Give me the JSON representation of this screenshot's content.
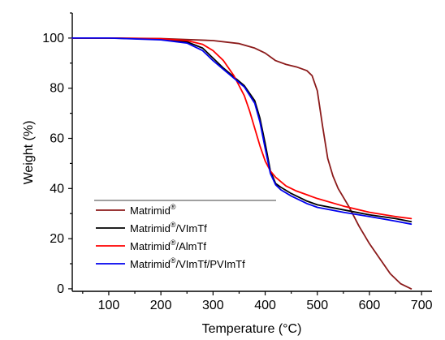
{
  "chart_data": {
    "type": "line",
    "xlabel": "Temperature (°C)",
    "ylabel": "Weight (%)",
    "xlim": [
      30,
      720
    ],
    "ylim": [
      -1,
      110
    ],
    "xticks": [
      100,
      200,
      300,
      400,
      500,
      600,
      700
    ],
    "xtick_labels": [
      "100",
      "200",
      "300",
      "400",
      "500",
      "600",
      "700"
    ],
    "yticks": [
      0,
      20,
      40,
      60,
      80,
      100
    ],
    "ytick_labels": [
      "0",
      "20",
      "40",
      "60",
      "80",
      "100"
    ],
    "grid": false,
    "legend_position": "bottom-left",
    "series": [
      {
        "name": "Matrimid®",
        "label_base": "Matrimid",
        "label_sup": "®",
        "label_rest": "",
        "color": "#8b1a1a",
        "x": [
          30,
          100,
          200,
          300,
          350,
          380,
          400,
          420,
          440,
          460,
          480,
          490,
          500,
          510,
          520,
          530,
          540,
          560,
          580,
          600,
          620,
          640,
          660,
          680
        ],
        "y": [
          100,
          100,
          99.8,
          99.0,
          97.8,
          96.0,
          94.0,
          91.0,
          89.5,
          88.5,
          87.0,
          85.0,
          79.0,
          65.0,
          52.0,
          45.0,
          40.0,
          33.0,
          25.0,
          18.0,
          12.0,
          6.0,
          2.0,
          0.0
        ]
      },
      {
        "name": "Matrimid®/VImTf",
        "label_base": "Matrimid",
        "label_sup": "®",
        "label_rest": "/VImTf",
        "color": "#000000",
        "x": [
          30,
          100,
          200,
          250,
          280,
          300,
          320,
          340,
          360,
          380,
          390,
          400,
          410,
          420,
          430,
          450,
          480,
          500,
          550,
          600,
          650,
          680
        ],
        "y": [
          100,
          100,
          99.5,
          98.5,
          96.0,
          92.0,
          88.0,
          84.5,
          81.0,
          75.0,
          68.0,
          58.0,
          47.0,
          42.0,
          40.5,
          38.0,
          35.0,
          33.5,
          31.5,
          29.5,
          28.0,
          26.8
        ]
      },
      {
        "name": "Matrimid®/AlmTf",
        "label_base": "Matrimid",
        "label_sup": "®",
        "label_rest": "/AlmTf",
        "color": "#ff0000",
        "x": [
          30,
          100,
          200,
          250,
          280,
          300,
          320,
          340,
          360,
          370,
          380,
          390,
          400,
          410,
          420,
          440,
          460,
          480,
          500,
          550,
          600,
          650,
          680
        ],
        "y": [
          100,
          100,
          99.7,
          99.0,
          97.5,
          95.0,
          91.0,
          85.0,
          77.0,
          71.0,
          64.0,
          57.0,
          51.0,
          47.0,
          44.5,
          41.0,
          39.0,
          37.5,
          36.0,
          33.0,
          30.5,
          28.8,
          28.0
        ]
      },
      {
        "name": "Matrimid®/VImTf/PVImTf",
        "label_base": "Matrimid",
        "label_sup": "®",
        "label_rest": "/VImTf/PVImTf",
        "color": "#0000ee",
        "x": [
          30,
          100,
          200,
          250,
          280,
          300,
          320,
          340,
          360,
          380,
          390,
          400,
          410,
          420,
          430,
          450,
          480,
          500,
          550,
          600,
          650,
          680
        ],
        "y": [
          100,
          100,
          99.3,
          98.0,
          95.0,
          91.0,
          87.5,
          84.0,
          80.5,
          74.0,
          66.5,
          56.0,
          46.0,
          41.5,
          39.5,
          37.0,
          34.0,
          32.5,
          30.5,
          28.8,
          27.0,
          25.8
        ]
      }
    ]
  }
}
